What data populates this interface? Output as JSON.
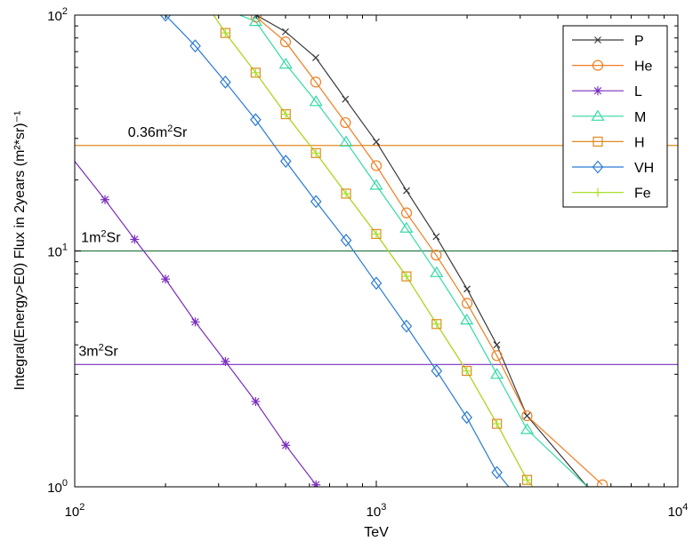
{
  "chart_data": {
    "type": "line",
    "xlabel": "TeV",
    "ylabel": "Integral(Energy>E0) Flux in 2years (m²*sr)⁻¹",
    "xscale": "log",
    "yscale": "log",
    "xlim": [
      100,
      10000
    ],
    "ylim": [
      1,
      100
    ],
    "grid": false,
    "legend_position": "top-right",
    "x_ticks": [
      {
        "value": 100,
        "base": "10",
        "exp": "2"
      },
      {
        "value": 1000,
        "base": "10",
        "exp": "3"
      },
      {
        "value": 10000,
        "base": "10",
        "exp": "4"
      }
    ],
    "y_ticks": [
      {
        "value": 1,
        "base": "10",
        "exp": "0"
      },
      {
        "value": 10,
        "base": "10",
        "exp": "1"
      },
      {
        "value": 100,
        "base": "10",
        "exp": "2"
      }
    ],
    "series": [
      {
        "name": "P",
        "color": "#3a3a3a",
        "marker": "x",
        "x": [
          310,
          400,
          500,
          630,
          790,
          1000,
          1260,
          1580,
          2000,
          2510,
          3160,
          5010,
          7940
        ],
        "y": [
          130,
          100,
          85,
          66,
          44,
          29,
          18,
          11.5,
          6.9,
          4.0,
          2.0,
          1.0,
          1.0
        ]
      },
      {
        "name": "He",
        "color": "#ef7e22",
        "marker": "o",
        "x": [
          400,
          500,
          630,
          790,
          1000,
          1260,
          1580,
          2000,
          2510,
          3160,
          5620
        ],
        "y": [
          98,
          77,
          52,
          35,
          23,
          14.5,
          9.6,
          6.0,
          3.6,
          2.0,
          1.02
        ]
      },
      {
        "name": "L",
        "color": "#7b2fbe",
        "marker": "*",
        "x": [
          100,
          126,
          158,
          200,
          251,
          316,
          398,
          501,
          631
        ],
        "y": [
          24,
          16.5,
          11.2,
          7.6,
          5.0,
          3.4,
          2.3,
          1.5,
          1.02
        ]
      },
      {
        "name": "M",
        "color": "#35d9a6",
        "marker": "^",
        "x": [
          320,
          398,
          501,
          631,
          794,
          1000,
          1259,
          1585,
          1995,
          2512,
          3162,
          5010
        ],
        "y": [
          105,
          94,
          62,
          43,
          29,
          19,
          12.5,
          8.1,
          5.1,
          3.0,
          1.75,
          1.0
        ]
      },
      {
        "name": "H",
        "color": "#e08a1e",
        "marker": "s",
        "x": [
          275,
          316,
          398,
          501,
          631,
          794,
          1000,
          1259,
          1585,
          1995,
          2512,
          3162,
          3300
        ],
        "y": [
          110,
          84,
          57,
          38,
          26,
          17.5,
          11.8,
          7.8,
          4.9,
          3.1,
          1.85,
          1.07,
          1.0
        ]
      },
      {
        "name": "VH",
        "color": "#2a7bd3",
        "marker": "d",
        "x": [
          200,
          251,
          316,
          398,
          501,
          631,
          794,
          1000,
          1259,
          1585,
          1995,
          2512,
          2750
        ],
        "y": [
          100,
          74,
          52,
          36,
          24,
          16.2,
          11.1,
          7.3,
          4.8,
          3.1,
          1.97,
          1.15,
          1.0
        ]
      },
      {
        "name": "Fe",
        "color": "#a8e02a",
        "marker": "+",
        "x": [
          275,
          316,
          398,
          501,
          631,
          794,
          1000,
          1259,
          1585,
          1995,
          2512,
          3162,
          3300
        ],
        "y": [
          110,
          84,
          57,
          38,
          26,
          17.5,
          11.8,
          7.8,
          4.9,
          3.1,
          1.85,
          1.07,
          1.0
        ]
      }
    ],
    "reference_lines": [
      {
        "y": 28,
        "color": "#e08a1e",
        "label_main": "0.36m",
        "label_sup": "2",
        "label_tail": "Sr",
        "label_x": 150
      },
      {
        "y": 10,
        "color": "#2f7a4a",
        "label_main": "1m",
        "label_sup": "2",
        "label_tail": "Sr",
        "label_x": 105
      },
      {
        "y": 3.3,
        "color": "#7b2fbe",
        "label_main": "3m",
        "label_sup": "2",
        "label_tail": "Sr",
        "label_x": 103
      }
    ]
  }
}
